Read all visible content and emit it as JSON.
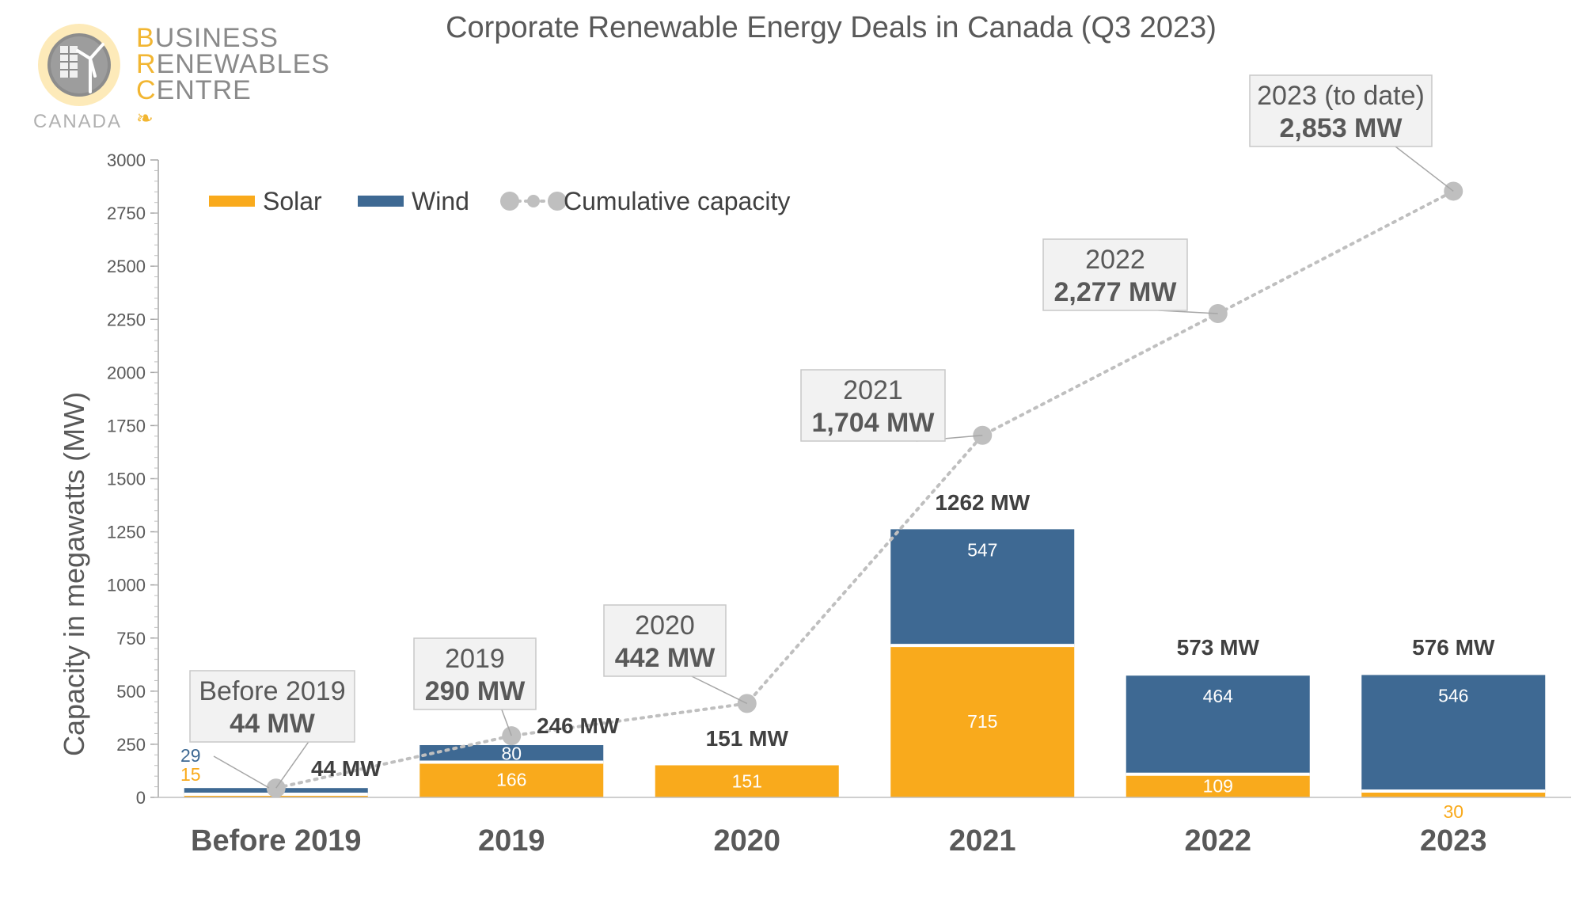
{
  "brand": {
    "lines": [
      {
        "first": "B",
        "rest": "USINESS"
      },
      {
        "first": "R",
        "rest": "ENEWABLES"
      },
      {
        "first": "C",
        "rest": "ENTRE"
      }
    ],
    "country": "CANADA",
    "logo_icon": "sun-with-solar-panel-and-wind-turbine-icon",
    "flag_icon": "maple-leaf-icon",
    "colors": {
      "accent": "#f2b632",
      "text": "#8a8a8a"
    }
  },
  "chart_data": {
    "type": "bar",
    "title": "Corporate Renewable Energy Deals in Canada (Q3 2023)",
    "xlabel": "",
    "ylabel": "Capacity in megawatts (MW)",
    "ylim": [
      0,
      3000
    ],
    "yticks": [
      0,
      250,
      500,
      750,
      1000,
      1250,
      1500,
      1750,
      2000,
      2250,
      2500,
      2750,
      3000
    ],
    "grid": false,
    "legend_position": "top-left",
    "categories": [
      "Before 2019",
      "2019",
      "2020",
      "2021",
      "2022",
      "2023"
    ],
    "series": [
      {
        "name": "Solar",
        "kind": "stacked-bar",
        "color": "#f9aa1c",
        "values": [
          15,
          166,
          151,
          715,
          109,
          30
        ],
        "labels": [
          "15",
          "166",
          "151",
          "715",
          "109",
          "30"
        ]
      },
      {
        "name": "Wind",
        "kind": "stacked-bar",
        "color": "#3e6993",
        "values": [
          29,
          80,
          0,
          547,
          464,
          546
        ],
        "labels": [
          "29",
          "80",
          "",
          "547",
          "464",
          "546"
        ]
      },
      {
        "name": "Cumulative capacity",
        "kind": "dotted-line",
        "color": "#bfbfbf",
        "values": [
          44,
          290,
          442,
          1704,
          2277,
          2853
        ]
      }
    ],
    "totals": [
      "44 MW",
      "246 MW",
      "151 MW",
      "1262 MW",
      "573 MW",
      "576 MW"
    ],
    "callouts": [
      {
        "title": "Before 2019",
        "value": "44 MW"
      },
      {
        "title": "2019",
        "value": "290 MW"
      },
      {
        "title": "2020",
        "value": "442 MW"
      },
      {
        "title": "2021",
        "value": "1,704 MW"
      },
      {
        "title": "2022",
        "value": "2,277 MW"
      },
      {
        "title": "2023 (to date)",
        "value": "2,853 MW"
      }
    ]
  }
}
